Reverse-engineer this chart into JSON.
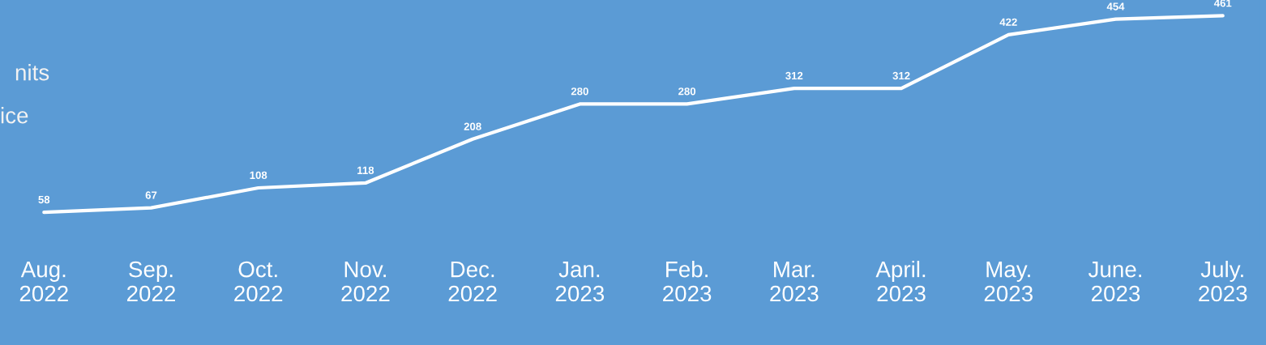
{
  "chart_data": {
    "type": "line",
    "categories": [
      "Aug.\n2022",
      "Sep.\n2022",
      "Oct.\n2022",
      "Nov.\n2022",
      "Dec.\n2022",
      "Jan.\n2023",
      "Feb.\n2023",
      "Mar.\n2023",
      "April.\n2023",
      "May.\n2023",
      "June.\n2023",
      "July.\n2023"
    ],
    "series": [
      {
        "color": "#ffffff",
        "values": [
          58,
          67,
          108,
          118,
          208,
          280,
          280,
          312,
          312,
          422,
          454,
          461
        ]
      }
    ],
    "data_labels": true,
    "grid": false,
    "marker": "none",
    "line_style": "solid",
    "tick_labels": "x",
    "annotations": [
      "nits",
      "ice"
    ]
  }
}
